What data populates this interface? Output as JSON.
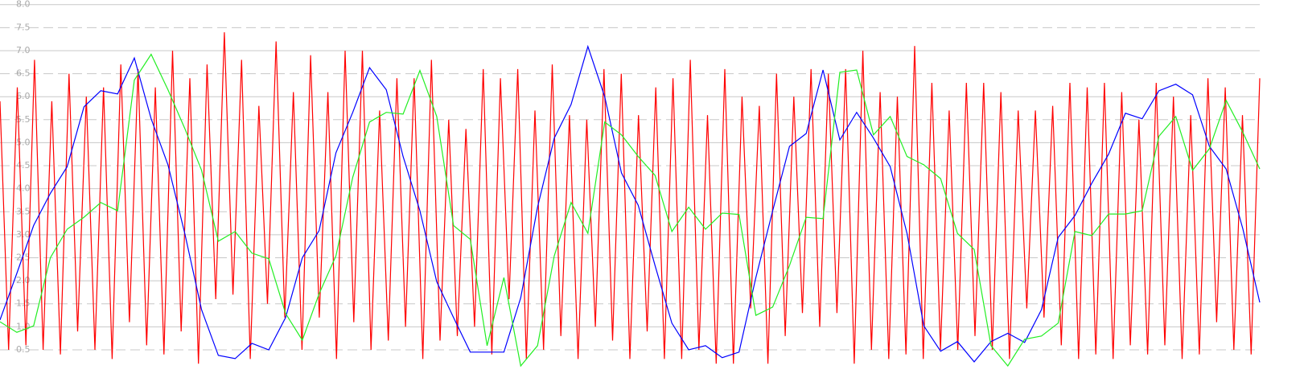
{
  "chart_data": {
    "type": "line",
    "ylim": [
      0,
      8.1
    ],
    "yticks": [
      {
        "value": 0.5,
        "label": "0.5"
      },
      {
        "value": 1,
        "label": "1.0"
      },
      {
        "value": 1.5,
        "label": "1.5"
      },
      {
        "value": 2,
        "label": "2.0"
      },
      {
        "value": 2.5,
        "label": "2.5"
      },
      {
        "value": 3,
        "label": "3.0"
      },
      {
        "value": 3.5,
        "label": "3.5"
      },
      {
        "value": 4,
        "label": "4.0"
      },
      {
        "value": 4.5,
        "label": "4.5"
      },
      {
        "value": 5,
        "label": "5.0"
      },
      {
        "value": 5.5,
        "label": "5.5"
      },
      {
        "value": 6,
        "label": "6.0"
      },
      {
        "value": 6.5,
        "label": "6.5"
      },
      {
        "value": 7,
        "label": "7.0"
      },
      {
        "value": 7.5,
        "label": "7.5"
      },
      {
        "value": 8,
        "label": "8.0"
      }
    ],
    "grid": true,
    "series": [
      {
        "color": "#ff0000",
        "values": [
          5.9,
          0.5,
          6.2,
          0.6,
          6.8,
          0.5,
          5.9,
          0.4,
          6.5,
          0.9,
          6.0,
          0.5,
          6.2,
          0.3,
          6.7,
          1.1,
          6.6,
          0.6,
          6.2,
          0.4,
          7.0,
          0.9,
          6.4,
          0.2,
          6.7,
          1.6,
          7.4,
          1.7,
          6.8,
          0.3,
          5.8,
          1.5,
          7.2,
          1.2,
          6.1,
          0.5,
          6.9,
          1.2,
          6.1,
          0.3,
          7.0,
          1.1,
          7.0,
          0.5,
          5.7,
          0.7,
          6.4,
          1.0,
          6.4,
          0.3,
          6.8,
          0.7,
          5.5,
          0.8,
          5.3,
          1.0,
          6.6,
          0.4,
          6.4,
          1.6,
          6.6,
          0.3,
          5.7,
          0.5,
          6.7,
          0.8,
          5.6,
          0.3,
          5.5,
          1.0,
          6.6,
          0.7,
          6.5,
          0.3,
          5.6,
          0.9,
          6.2,
          0.3,
          6.4,
          0.3,
          6.8,
          0.5,
          5.6,
          0.2,
          6.6,
          0.2,
          6.0,
          1.4,
          5.8,
          0.2,
          6.5,
          0.8,
          6.0,
          1.3,
          6.6,
          1.0,
          6.5,
          1.3,
          6.6,
          0.2,
          7.0,
          0.5,
          6.1,
          0.3,
          6.0,
          0.4,
          7.1,
          0.3,
          6.3,
          0.5,
          5.7,
          0.5,
          6.3,
          0.8,
          6.3,
          0.5,
          6.1,
          0.3,
          5.7,
          1.4,
          5.7,
          1.2,
          5.8,
          0.6,
          6.3,
          0.3,
          6.2,
          0.4,
          6.3,
          0.3,
          6.1,
          0.6,
          5.5,
          0.4,
          6.3,
          0.6,
          6.0,
          0.3,
          5.6,
          0.4,
          6.4,
          1.1,
          6.2,
          0.5,
          5.6,
          0.4,
          6.4
        ]
      },
      {
        "color": "#0000ff",
        "values": [
          1.15,
          2.16,
          3.2,
          3.9,
          4.48,
          5.78,
          6.13,
          6.06,
          6.84,
          5.52,
          4.52,
          3.03,
          1.37,
          0.38,
          0.31,
          0.64,
          0.5,
          1.2,
          2.5,
          3.09,
          4.78,
          5.66,
          6.63,
          6.15,
          4.7,
          3.52,
          1.98,
          1.2,
          0.45,
          0.45,
          0.45,
          1.63,
          3.6,
          5.1,
          5.83,
          7.09,
          6.0,
          4.34,
          3.64,
          2.33,
          1.08,
          0.5,
          0.59,
          0.33,
          0.45,
          2.07,
          3.52,
          4.92,
          5.2,
          6.58,
          5.06,
          5.66,
          5.1,
          4.48,
          3.03,
          1.02,
          0.47,
          0.68,
          0.24,
          0.68,
          0.86,
          0.66,
          1.37,
          2.94,
          3.42,
          4.12,
          4.75,
          5.64,
          5.52,
          6.13,
          6.27,
          6.04,
          4.92,
          4.43,
          3.12,
          1.53
        ]
      },
      {
        "color": "#22ee22",
        "values": [
          1.11,
          0.88,
          1.02,
          2.5,
          3.12,
          3.38,
          3.7,
          3.52,
          6.36,
          6.92,
          6.15,
          5.31,
          4.4,
          2.86,
          3.07,
          2.6,
          2.48,
          1.29,
          0.71,
          1.72,
          2.54,
          4.25,
          5.45,
          5.66,
          5.62,
          6.57,
          5.57,
          3.2,
          2.9,
          0.59,
          2.07,
          0.15,
          0.59,
          2.54,
          3.7,
          3.03,
          5.45,
          5.17,
          4.7,
          4.29,
          3.07,
          3.6,
          3.12,
          3.47,
          3.44,
          1.25,
          1.43,
          2.33,
          3.38,
          3.35,
          6.53,
          6.58,
          5.17,
          5.57,
          4.7,
          4.52,
          4.22,
          3.03,
          2.68,
          0.59,
          0.15,
          0.73,
          0.8,
          1.08,
          3.07,
          2.98,
          3.45,
          3.45,
          3.52,
          5.14,
          5.57,
          4.4,
          4.87,
          5.92,
          5.22,
          4.43
        ]
      }
    ]
  }
}
